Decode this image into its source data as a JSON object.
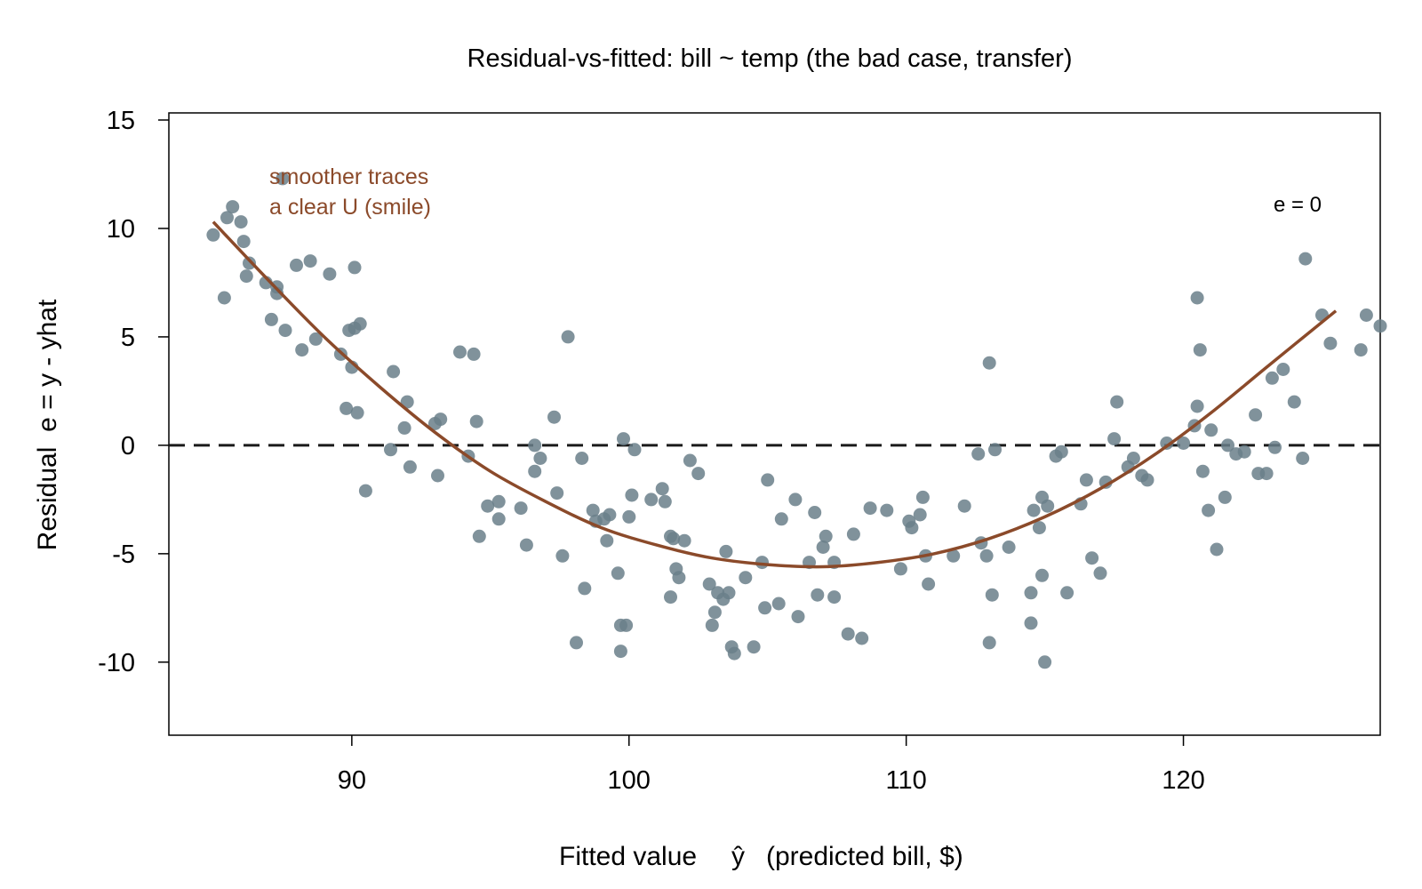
{
  "chart_data": {
    "type": "scatter",
    "title": "Residual-vs-fitted: bill ~ temp (the bad case, transfer)",
    "xlabel_prefix": "Fitted value",
    "xlabel_symbol": "ŷ",
    "xlabel_suffix": "(predicted bill, $)",
    "ylabel": "Residual  e = y - yhat",
    "xlim": [
      83.4,
      127.1
    ],
    "ylim": [
      -13,
      15
    ],
    "x_ticks": [
      90,
      100,
      110,
      120
    ],
    "y_ticks": [
      -10,
      -5,
      0,
      5,
      10,
      15
    ],
    "grid": false,
    "reference_line": {
      "y": 0,
      "style": "dashed",
      "label": "e = 0",
      "color": "#1a1a1a"
    },
    "annotation": {
      "lines": [
        "smoother traces",
        "a clear U (smile)"
      ],
      "color": "#8b4a2a"
    },
    "colors": {
      "points": "#6a7f8a",
      "smoother": "#8b4a2a",
      "axes": "#000000"
    },
    "smoother": {
      "x": [
        85,
        87,
        89,
        91,
        93,
        95,
        97,
        99,
        101,
        103,
        105,
        107,
        109,
        111,
        113,
        115,
        117,
        119,
        121,
        123,
        125.5
      ],
      "y": [
        10.3,
        7.6,
        5.0,
        2.7,
        0.6,
        -1.2,
        -2.6,
        -3.8,
        -4.6,
        -5.2,
        -5.5,
        -5.6,
        -5.4,
        -5.0,
        -4.3,
        -3.3,
        -2.0,
        -0.4,
        1.5,
        3.6,
        6.2
      ]
    },
    "series": [
      {
        "points": [
          [
            85.0,
            9.7
          ],
          [
            85.4,
            6.8
          ],
          [
            85.5,
            10.5
          ],
          [
            85.7,
            11.0
          ],
          [
            86.0,
            10.3
          ],
          [
            86.1,
            9.4
          ],
          [
            86.2,
            7.8
          ],
          [
            86.3,
            8.4
          ],
          [
            86.9,
            7.5
          ],
          [
            87.1,
            5.8
          ],
          [
            87.3,
            7.3
          ],
          [
            87.3,
            7.0
          ],
          [
            87.5,
            12.3
          ],
          [
            87.6,
            5.3
          ],
          [
            88.0,
            8.3
          ],
          [
            88.2,
            4.4
          ],
          [
            88.5,
            8.5
          ],
          [
            88.7,
            4.9
          ],
          [
            89.2,
            7.9
          ],
          [
            89.6,
            4.2
          ],
          [
            89.8,
            1.7
          ],
          [
            89.9,
            5.3
          ],
          [
            90.1,
            5.4
          ],
          [
            90.1,
            8.2
          ],
          [
            90.3,
            5.6
          ],
          [
            90.0,
            3.6
          ],
          [
            90.2,
            1.5
          ],
          [
            90.5,
            -2.1
          ],
          [
            91.4,
            -0.2
          ],
          [
            91.5,
            3.4
          ],
          [
            91.9,
            0.8
          ],
          [
            92.0,
            2.0
          ],
          [
            92.1,
            -1.0
          ],
          [
            93.0,
            1.0
          ],
          [
            93.2,
            1.2
          ],
          [
            93.1,
            -1.4
          ],
          [
            93.9,
            4.3
          ],
          [
            94.2,
            -0.5
          ],
          [
            94.4,
            4.2
          ],
          [
            94.5,
            1.1
          ],
          [
            94.6,
            -4.2
          ],
          [
            94.9,
            -2.8
          ],
          [
            95.3,
            -2.6
          ],
          [
            95.3,
            -3.4
          ],
          [
            96.1,
            -2.9
          ],
          [
            96.3,
            -4.6
          ],
          [
            96.6,
            0.0
          ],
          [
            96.6,
            -1.2
          ],
          [
            96.8,
            -0.6
          ],
          [
            97.3,
            1.3
          ],
          [
            97.4,
            -2.2
          ],
          [
            97.6,
            -5.1
          ],
          [
            97.8,
            5.0
          ],
          [
            98.1,
            -9.1
          ],
          [
            98.3,
            -0.6
          ],
          [
            98.4,
            -6.6
          ],
          [
            98.7,
            -3.0
          ],
          [
            98.8,
            -3.5
          ],
          [
            99.1,
            -3.4
          ],
          [
            99.2,
            -4.4
          ],
          [
            99.3,
            -3.2
          ],
          [
            99.6,
            -5.9
          ],
          [
            99.7,
            -8.3
          ],
          [
            99.8,
            0.3
          ],
          [
            99.7,
            -9.5
          ],
          [
            99.9,
            -8.3
          ],
          [
            100.0,
            -3.3
          ],
          [
            100.1,
            -2.3
          ],
          [
            100.2,
            -0.2
          ],
          [
            100.8,
            -2.5
          ],
          [
            101.2,
            -2.0
          ],
          [
            101.3,
            -2.6
          ],
          [
            101.5,
            -4.2
          ],
          [
            101.5,
            -7.0
          ],
          [
            101.6,
            -4.3
          ],
          [
            101.7,
            -5.7
          ],
          [
            101.8,
            -6.1
          ],
          [
            102.0,
            -4.4
          ],
          [
            102.2,
            -0.7
          ],
          [
            102.5,
            -1.3
          ],
          [
            102.9,
            -6.4
          ],
          [
            103.0,
            -8.3
          ],
          [
            103.1,
            -7.7
          ],
          [
            103.2,
            -6.8
          ],
          [
            103.4,
            -7.1
          ],
          [
            103.5,
            -4.9
          ],
          [
            103.6,
            -6.8
          ],
          [
            103.7,
            -9.3
          ],
          [
            103.8,
            -9.6
          ],
          [
            104.2,
            -6.1
          ],
          [
            104.5,
            -9.3
          ],
          [
            104.8,
            -5.4
          ],
          [
            104.9,
            -7.5
          ],
          [
            105.0,
            -1.6
          ],
          [
            105.4,
            -7.3
          ],
          [
            105.5,
            -3.4
          ],
          [
            106.0,
            -2.5
          ],
          [
            106.1,
            -7.9
          ],
          [
            106.5,
            -5.4
          ],
          [
            106.7,
            -3.1
          ],
          [
            106.8,
            -6.9
          ],
          [
            107.0,
            -4.7
          ],
          [
            107.1,
            -4.2
          ],
          [
            107.4,
            -7.0
          ],
          [
            107.4,
            -5.4
          ],
          [
            107.9,
            -8.7
          ],
          [
            108.1,
            -4.1
          ],
          [
            108.4,
            -8.9
          ],
          [
            108.7,
            -2.9
          ],
          [
            109.3,
            -3.0
          ],
          [
            109.8,
            -5.7
          ],
          [
            110.1,
            -3.5
          ],
          [
            110.2,
            -3.8
          ],
          [
            110.5,
            -3.2
          ],
          [
            110.6,
            -2.4
          ],
          [
            110.7,
            -5.1
          ],
          [
            110.8,
            -6.4
          ],
          [
            111.7,
            -5.1
          ],
          [
            112.1,
            -2.8
          ],
          [
            112.6,
            -0.4
          ],
          [
            112.7,
            -4.5
          ],
          [
            112.9,
            -5.1
          ],
          [
            113.0,
            3.8
          ],
          [
            113.0,
            -9.1
          ],
          [
            113.1,
            -6.9
          ],
          [
            113.2,
            -0.2
          ],
          [
            113.7,
            -4.7
          ],
          [
            114.5,
            -6.8
          ],
          [
            114.5,
            -8.2
          ],
          [
            114.6,
            -3.0
          ],
          [
            114.8,
            -3.8
          ],
          [
            114.9,
            -2.4
          ],
          [
            114.9,
            -6.0
          ],
          [
            115.0,
            -10.0
          ],
          [
            115.1,
            -2.8
          ],
          [
            115.4,
            -0.5
          ],
          [
            115.6,
            -0.3
          ],
          [
            115.8,
            -6.8
          ],
          [
            116.3,
            -2.7
          ],
          [
            116.5,
            -1.6
          ],
          [
            116.7,
            -5.2
          ],
          [
            117.0,
            -5.9
          ],
          [
            117.2,
            -1.7
          ],
          [
            117.5,
            0.3
          ],
          [
            117.6,
            2.0
          ],
          [
            118.0,
            -1.0
          ],
          [
            118.2,
            -0.6
          ],
          [
            118.5,
            -1.4
          ],
          [
            118.7,
            -1.6
          ],
          [
            119.4,
            0.1
          ],
          [
            120.0,
            0.1
          ],
          [
            120.4,
            0.9
          ],
          [
            120.5,
            1.8
          ],
          [
            120.5,
            6.8
          ],
          [
            120.6,
            4.4
          ],
          [
            120.7,
            -1.2
          ],
          [
            120.9,
            -3.0
          ],
          [
            121.0,
            0.7
          ],
          [
            121.2,
            -4.8
          ],
          [
            121.5,
            -2.4
          ],
          [
            121.6,
            0.0
          ],
          [
            121.9,
            -0.4
          ],
          [
            122.2,
            -0.3
          ],
          [
            122.6,
            1.4
          ],
          [
            122.7,
            -1.3
          ],
          [
            123.0,
            -1.3
          ],
          [
            123.2,
            3.1
          ],
          [
            123.3,
            -0.1
          ],
          [
            123.6,
            3.5
          ],
          [
            124.0,
            2.0
          ],
          [
            124.3,
            -0.6
          ],
          [
            124.4,
            8.6
          ],
          [
            125.0,
            6.0
          ],
          [
            125.3,
            4.7
          ],
          [
            126.4,
            4.4
          ],
          [
            126.6,
            6.0
          ],
          [
            127.1,
            5.5
          ]
        ]
      }
    ]
  }
}
